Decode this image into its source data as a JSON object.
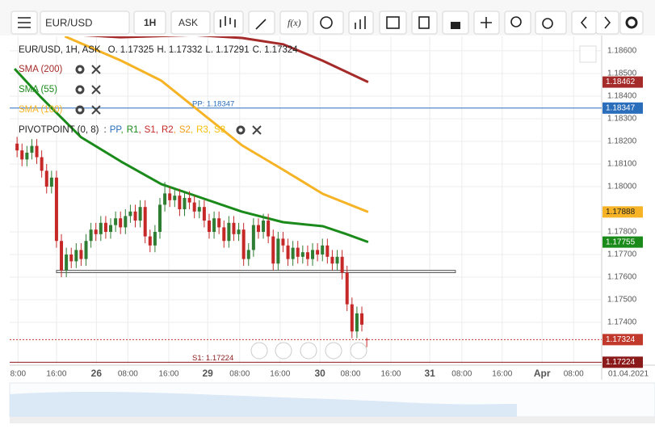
{
  "toolbar": {
    "symbol": "EUR/USD",
    "interval": "1H",
    "side": "ASK",
    "fx": "f(x)"
  },
  "chart_data": {
    "type": "candlestick",
    "legend_header": "EUR/USD, 1H, ASK",
    "ohlc_labels": [
      "O.",
      "H.",
      "L.",
      "C."
    ],
    "pivot_title": "PIVOTPOINT (0, 8)",
    "pivot_prefix": ":",
    "separator": ",",
    "pivot_legend": [
      {
        "text": "PP",
        "color": "#2a6ebb"
      },
      {
        "text": "R1",
        "color": "#1a8a1a"
      },
      {
        "text": "S1",
        "color": "#c62828"
      },
      {
        "text": "R2",
        "color": "#c62828"
      },
      {
        "text": "S2",
        "color": "#f39c12"
      },
      {
        "text": "R3",
        "color": "#f4c20d"
      },
      {
        "text": "S3",
        "color": "#f4c20d"
      }
    ],
    "up_color": "#2e7d32",
    "down_color": "#c62828",
    "grid": true,
    "xlim": [
      -1.5,
      118.7
    ],
    "ylim": [
      1.17211,
      1.18664
    ],
    "xticks": [
      {
        "value": 0.2,
        "label": "8:00"
      },
      {
        "value": 8.0,
        "label": "16:00"
      },
      {
        "value": 16.1,
        "label": "26"
      },
      {
        "value": 22.5,
        "label": "08:00"
      },
      {
        "value": 30.8,
        "label": "16:00"
      },
      {
        "value": 38.7,
        "label": "29"
      },
      {
        "value": 45.2,
        "label": "08:00"
      },
      {
        "value": 53.4,
        "label": "16:00"
      },
      {
        "value": 61.5,
        "label": "30"
      },
      {
        "value": 67.7,
        "label": "08:00"
      },
      {
        "value": 75.9,
        "label": "16:00"
      },
      {
        "value": 83.8,
        "label": "31"
      },
      {
        "value": 90.3,
        "label": "08:00"
      },
      {
        "value": 98.5,
        "label": "16:00"
      },
      {
        "value": 106.6,
        "label": "Apr"
      },
      {
        "value": 113,
        "label": "08:00"
      }
    ],
    "date_label": "01.04.2021",
    "yticks": [
      {
        "value": 1.186,
        "label": "1.18600"
      },
      {
        "value": 1.185,
        "label": "1.18500"
      },
      {
        "value": 1.184,
        "label": "1.18400"
      },
      {
        "value": 1.183,
        "label": "1.18300"
      },
      {
        "value": 1.182,
        "label": "1.18200"
      },
      {
        "value": 1.181,
        "label": "1.18100"
      },
      {
        "value": 1.18,
        "label": "1.18000"
      },
      {
        "value": 1.178,
        "label": "1.17800"
      },
      {
        "value": 1.177,
        "label": "1.17700"
      },
      {
        "value": 1.176,
        "label": "1.17600"
      },
      {
        "value": 1.175,
        "label": "1.17500"
      },
      {
        "value": 1.174,
        "label": "1.17400"
      }
    ],
    "open": [
      1.1819,
      1.1816,
      1.1812,
      1.1815,
      1.1818,
      1.1813,
      1.1807,
      1.18,
      1.1804,
      1.1776,
      1.1763,
      1.177,
      1.1767,
      1.1772,
      1.1768,
      1.1776,
      1.1781,
      1.1779,
      1.1784,
      1.178,
      1.1783,
      1.1786,
      1.1782,
      1.1787,
      1.1789,
      1.1785,
      1.1791,
      1.1778,
      1.1774,
      1.178,
      1.1792,
      1.1797,
      1.1794,
      1.1796,
      1.179,
      1.1795,
      1.1793,
      1.1789,
      1.1791,
      1.1785,
      1.178,
      1.1786,
      1.1782,
      1.1776,
      1.1784,
      1.1779,
      1.1781,
      1.1768,
      1.1772,
      1.1783,
      1.178,
      1.1785,
      1.1778,
      1.1766,
      1.1777,
      1.1774,
      1.1768,
      1.1773,
      1.1769,
      1.1771,
      1.1768,
      1.1772,
      1.177,
      1.1774,
      1.1769,
      1.1766,
      1.1769,
      1.1762,
      1.1748,
      1.1736,
      1.1744,
      1.17325
    ],
    "high": [
      1.1822,
      1.1819,
      1.1818,
      1.1821,
      1.1821,
      1.1816,
      1.181,
      1.1807,
      1.1807,
      1.1779,
      1.1773,
      1.1773,
      1.1775,
      1.1775,
      1.1779,
      1.1784,
      1.1784,
      1.1787,
      1.1787,
      1.1786,
      1.1789,
      1.1789,
      1.179,
      1.1792,
      1.1792,
      1.1794,
      1.1794,
      1.1781,
      1.1783,
      1.1795,
      1.1802,
      1.18,
      1.1799,
      1.1799,
      1.1798,
      1.1798,
      1.1796,
      1.1794,
      1.1794,
      1.1788,
      1.1789,
      1.1789,
      1.1785,
      1.1787,
      1.1787,
      1.1784,
      1.1784,
      1.1775,
      1.1786,
      1.1786,
      1.1788,
      1.1788,
      1.1781,
      1.178,
      1.178,
      1.1777,
      1.1776,
      1.1776,
      1.1774,
      1.1774,
      1.1775,
      1.1775,
      1.1777,
      1.1777,
      1.1772,
      1.1772,
      1.1772,
      1.1765,
      1.1751,
      1.1747,
      1.1747,
      1.17332
    ],
    "low": [
      1.1813,
      1.1809,
      1.1809,
      1.1812,
      1.181,
      1.1804,
      1.1797,
      1.1797,
      1.1773,
      1.176,
      1.176,
      1.1764,
      1.1764,
      1.1765,
      1.1765,
      1.1773,
      1.1776,
      1.1776,
      1.1777,
      1.1777,
      1.178,
      1.1779,
      1.1779,
      1.1784,
      1.1782,
      1.1782,
      1.1775,
      1.1771,
      1.1771,
      1.1777,
      1.1789,
      1.1791,
      1.1791,
      1.1787,
      1.1787,
      1.179,
      1.1786,
      1.1786,
      1.1782,
      1.1777,
      1.1777,
      1.1779,
      1.1773,
      1.1773,
      1.1776,
      1.1776,
      1.1765,
      1.1765,
      1.1769,
      1.1777,
      1.1777,
      1.1775,
      1.1763,
      1.1763,
      1.1771,
      1.1765,
      1.1765,
      1.1766,
      1.1766,
      1.1765,
      1.1765,
      1.1767,
      1.1767,
      1.1766,
      1.1763,
      1.1763,
      1.1759,
      1.1745,
      1.1733,
      1.1733,
      1.1736,
      1.17291
    ],
    "close": [
      1.1816,
      1.1812,
      1.1815,
      1.1818,
      1.1813,
      1.1807,
      1.18,
      1.1804,
      1.1776,
      1.1763,
      1.177,
      1.1767,
      1.1772,
      1.1768,
      1.1776,
      1.1781,
      1.1779,
      1.1784,
      1.178,
      1.1783,
      1.1786,
      1.1782,
      1.1787,
      1.1789,
      1.1785,
      1.1791,
      1.1778,
      1.1774,
      1.178,
      1.1792,
      1.1797,
      1.1794,
      1.1796,
      1.179,
      1.1795,
      1.1793,
      1.1789,
      1.1791,
      1.1785,
      1.178,
      1.1786,
      1.1782,
      1.1776,
      1.1784,
      1.1779,
      1.1781,
      1.1768,
      1.1772,
      1.1783,
      1.178,
      1.1785,
      1.1778,
      1.1766,
      1.1777,
      1.1774,
      1.1768,
      1.1773,
      1.1769,
      1.1771,
      1.1768,
      1.1772,
      1.177,
      1.1774,
      1.1769,
      1.1766,
      1.1769,
      1.1762,
      1.1748,
      1.1736,
      1.1744,
      1.1739,
      1.17324
    ],
    "price_color": "#c0392b",
    "series": [
      {
        "name": "SMA (200)",
        "color": "#a52a2a",
        "tag_text": "#fff",
        "x": [
          8.9,
          21,
          36,
          45.7,
          54,
          62,
          71.3
        ],
        "values": [
          1.18675,
          1.1866,
          1.1867,
          1.18657,
          1.18629,
          1.18557,
          1.18462
        ]
      },
      {
        "name": "SMA (55)",
        "color": "#1a8a1a",
        "tag_text": "#fff",
        "x": [
          -0.5,
          4.8,
          13,
          21.1,
          29.3,
          37.5,
          45.7,
          54,
          62.1,
          67,
          71.3
        ],
        "values": [
          1.18521,
          1.18396,
          1.18218,
          1.18111,
          1.18011,
          1.1795,
          1.17889,
          1.17843,
          1.17825,
          1.17789,
          1.17755
        ]
      },
      {
        "name": "SMA (100)",
        "color": "#f5b325",
        "tag_text": "#222",
        "x": [
          9.7,
          21.1,
          29.3,
          37.5,
          45.7,
          54,
          62.1,
          71.3
        ],
        "values": [
          1.18664,
          1.18557,
          1.18468,
          1.18325,
          1.18182,
          1.18075,
          1.17968,
          1.17888
        ]
      }
    ],
    "pivots": [
      {
        "value": 1.18347,
        "label": "PP: 1.18347",
        "color": "#2a6ebb"
      },
      {
        "value": 1.17224,
        "label": "S1: 1.17224",
        "color": "#8b1a1a"
      }
    ],
    "support_box": {
      "x": [
        8,
        89
      ],
      "y": [
        1.1763,
        1.1762
      ]
    }
  }
}
